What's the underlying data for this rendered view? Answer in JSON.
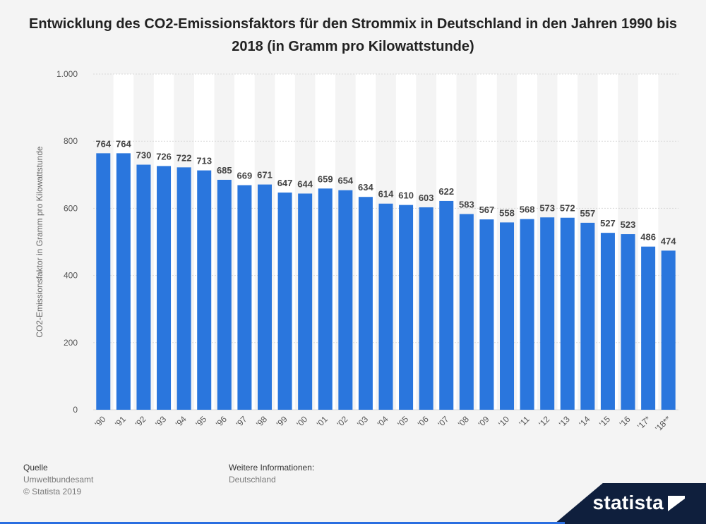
{
  "title": "Entwicklung des CO2-Emissionsfaktors für den Strommix in Deutschland in den Jahren 1990 bis 2018 (in Gramm pro Kilowattstunde)",
  "footer": {
    "source_label": "Quelle",
    "source_value": "Umweltbundesamt",
    "copyright": "© Statista 2019",
    "info_label": "Weitere Informationen:",
    "info_value": "Deutschland"
  },
  "brand": {
    "name": "statista",
    "bg_color": "#0f1f3d"
  },
  "colors": {
    "bar": "#2a76dd",
    "label": "#444444",
    "grid": "#d9d9d9",
    "band": "#ffffff"
  },
  "chart_data": {
    "type": "bar",
    "title": "Entwicklung des CO2-Emissionsfaktors für den Strommix in Deutschland in den Jahren 1990 bis 2018 (in Gramm pro Kilowattstunde)",
    "xlabel": "",
    "ylabel": "CO2-Emissionsfaktor in Gramm pro Kilowattstunde",
    "ylim": [
      0,
      1000
    ],
    "yticks": [
      0,
      200,
      400,
      600,
      800,
      1000
    ],
    "ytick_labels": [
      "0",
      "200",
      "400",
      "600",
      "800",
      "1.000"
    ],
    "grid": true,
    "legend": "none",
    "categories": [
      "'90",
      "'91",
      "'92",
      "'93",
      "'94",
      "'95",
      "'96",
      "'97",
      "'98",
      "'99",
      "'00",
      "'01",
      "'02",
      "'03",
      "'04",
      "'05",
      "'06",
      "'07",
      "'08",
      "'09",
      "'10",
      "'11",
      "'12",
      "'13",
      "'14",
      "'15",
      "'16",
      "'17*",
      "'18**"
    ],
    "values": [
      764,
      764,
      730,
      726,
      722,
      713,
      685,
      669,
      671,
      647,
      644,
      659,
      654,
      634,
      614,
      610,
      603,
      622,
      583,
      567,
      558,
      568,
      573,
      572,
      557,
      527,
      523,
      486,
      474
    ]
  }
}
